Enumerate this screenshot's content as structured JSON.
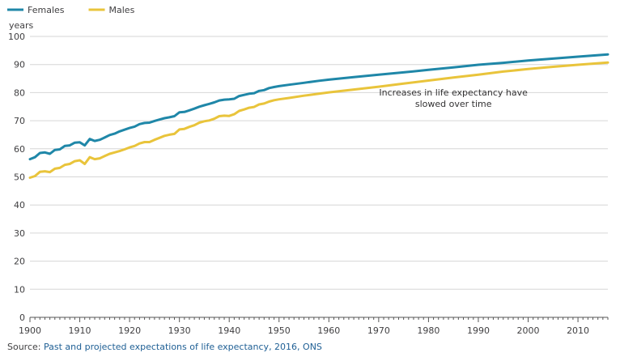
{
  "chart_data": {
    "type": "line",
    "ylabel": "years",
    "ylim": [
      0,
      100
    ],
    "xlim": [
      1900,
      2016
    ],
    "yticks": [
      0,
      10,
      20,
      30,
      40,
      50,
      60,
      70,
      80,
      90,
      100
    ],
    "xticks": [
      1900,
      1910,
      1920,
      1930,
      1940,
      1950,
      1960,
      1970,
      1980,
      1990,
      2000,
      2010
    ],
    "grid": true,
    "legend_position": "top-left",
    "annotation": {
      "lines": [
        "Increases in life expectancy have",
        "slowed over time"
      ],
      "x": 1985,
      "y": 79
    },
    "series": [
      {
        "name": "Females",
        "color": "#1f87a8",
        "points": [
          [
            1900,
            56.3
          ],
          [
            1901,
            57.0
          ],
          [
            1902,
            58.5
          ],
          [
            1903,
            58.7
          ],
          [
            1904,
            58.2
          ],
          [
            1905,
            59.6
          ],
          [
            1906,
            59.8
          ],
          [
            1907,
            61.0
          ],
          [
            1908,
            61.2
          ],
          [
            1909,
            62.2
          ],
          [
            1910,
            62.3
          ],
          [
            1911,
            61.2
          ],
          [
            1912,
            63.5
          ],
          [
            1913,
            62.8
          ],
          [
            1914,
            63.2
          ],
          [
            1915,
            64.0
          ],
          [
            1916,
            64.9
          ],
          [
            1917,
            65.4
          ],
          [
            1918,
            66.2
          ],
          [
            1919,
            66.8
          ],
          [
            1920,
            67.4
          ],
          [
            1921,
            67.9
          ],
          [
            1922,
            68.8
          ],
          [
            1923,
            69.2
          ],
          [
            1924,
            69.3
          ],
          [
            1925,
            69.9
          ],
          [
            1926,
            70.4
          ],
          [
            1927,
            70.9
          ],
          [
            1928,
            71.2
          ],
          [
            1929,
            71.6
          ],
          [
            1930,
            73.0
          ],
          [
            1931,
            73.1
          ],
          [
            1932,
            73.7
          ],
          [
            1933,
            74.3
          ],
          [
            1934,
            75.0
          ],
          [
            1935,
            75.5
          ],
          [
            1936,
            76.0
          ],
          [
            1937,
            76.5
          ],
          [
            1938,
            77.2
          ],
          [
            1939,
            77.5
          ],
          [
            1940,
            77.6
          ],
          [
            1941,
            77.8
          ],
          [
            1942,
            78.8
          ],
          [
            1943,
            79.2
          ],
          [
            1944,
            79.6
          ],
          [
            1945,
            79.8
          ],
          [
            1946,
            80.6
          ],
          [
            1947,
            80.9
          ],
          [
            1948,
            81.6
          ],
          [
            1949,
            82.0
          ],
          [
            1950,
            82.3
          ],
          [
            1952,
            82.8
          ],
          [
            1955,
            83.5
          ],
          [
            1958,
            84.2
          ],
          [
            1960,
            84.6
          ],
          [
            1965,
            85.5
          ],
          [
            1970,
            86.4
          ],
          [
            1975,
            87.2
          ],
          [
            1980,
            88.1
          ],
          [
            1985,
            89.0
          ],
          [
            1990,
            89.9
          ],
          [
            1995,
            90.6
          ],
          [
            2000,
            91.4
          ],
          [
            2005,
            92.1
          ],
          [
            2010,
            92.8
          ],
          [
            2016,
            93.6
          ]
        ]
      },
      {
        "name": "Males",
        "color": "#e9c43b",
        "points": [
          [
            1900,
            49.7
          ],
          [
            1901,
            50.3
          ],
          [
            1902,
            51.8
          ],
          [
            1903,
            52.0
          ],
          [
            1904,
            51.7
          ],
          [
            1905,
            52.9
          ],
          [
            1906,
            53.2
          ],
          [
            1907,
            54.3
          ],
          [
            1908,
            54.6
          ],
          [
            1909,
            55.6
          ],
          [
            1910,
            55.9
          ],
          [
            1911,
            54.6
          ],
          [
            1912,
            57.0
          ],
          [
            1913,
            56.3
          ],
          [
            1914,
            56.6
          ],
          [
            1915,
            57.4
          ],
          [
            1916,
            58.2
          ],
          [
            1917,
            58.7
          ],
          [
            1918,
            59.2
          ],
          [
            1919,
            59.8
          ],
          [
            1920,
            60.5
          ],
          [
            1921,
            61.0
          ],
          [
            1922,
            61.9
          ],
          [
            1923,
            62.4
          ],
          [
            1924,
            62.4
          ],
          [
            1925,
            63.2
          ],
          [
            1926,
            63.9
          ],
          [
            1927,
            64.6
          ],
          [
            1928,
            65.0
          ],
          [
            1929,
            65.3
          ],
          [
            1930,
            66.9
          ],
          [
            1931,
            67.1
          ],
          [
            1932,
            67.8
          ],
          [
            1933,
            68.4
          ],
          [
            1934,
            69.3
          ],
          [
            1935,
            69.8
          ],
          [
            1936,
            70.1
          ],
          [
            1937,
            70.7
          ],
          [
            1938,
            71.6
          ],
          [
            1939,
            71.8
          ],
          [
            1940,
            71.7
          ],
          [
            1941,
            72.3
          ],
          [
            1942,
            73.5
          ],
          [
            1943,
            74.0
          ],
          [
            1944,
            74.6
          ],
          [
            1945,
            74.9
          ],
          [
            1946,
            75.8
          ],
          [
            1947,
            76.1
          ],
          [
            1948,
            76.8
          ],
          [
            1949,
            77.3
          ],
          [
            1950,
            77.6
          ],
          [
            1952,
            78.1
          ],
          [
            1955,
            78.9
          ],
          [
            1958,
            79.6
          ],
          [
            1960,
            80.1
          ],
          [
            1965,
            81.1
          ],
          [
            1970,
            82.1
          ],
          [
            1975,
            83.2
          ],
          [
            1980,
            84.3
          ],
          [
            1985,
            85.4
          ],
          [
            1990,
            86.4
          ],
          [
            1995,
            87.5
          ],
          [
            2000,
            88.4
          ],
          [
            2005,
            89.2
          ],
          [
            2010,
            89.9
          ],
          [
            2016,
            90.7
          ]
        ]
      }
    ]
  },
  "source": {
    "prefix": "Source: ",
    "link_text": "Past and projected expectations of life expectancy, 2016, ONS"
  }
}
